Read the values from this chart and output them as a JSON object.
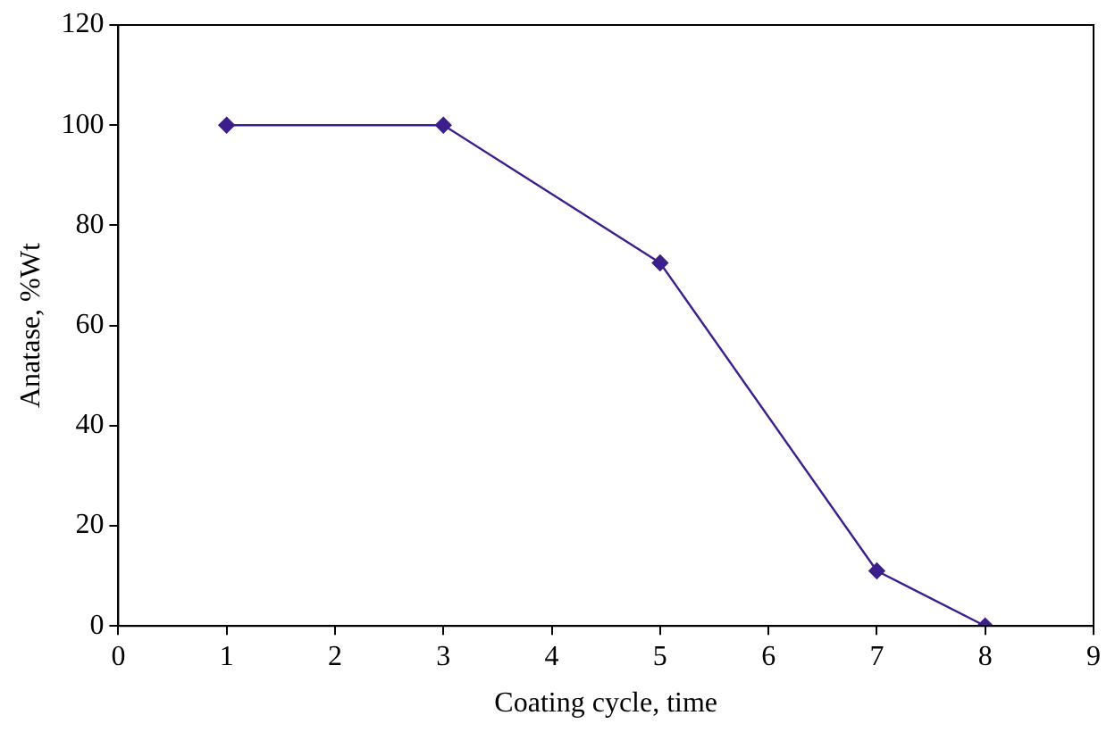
{
  "chart_data": {
    "type": "line",
    "xlabel": "Coating cycle, time",
    "ylabel": "Anatase, %Wt",
    "x": [
      1,
      3,
      5,
      7,
      8
    ],
    "series": [
      {
        "color": "#3c1f8c",
        "values": [
          100,
          100,
          72.5,
          11,
          0
        ]
      }
    ],
    "xlim": [
      0,
      9
    ],
    "xticks": [
      0,
      1,
      2,
      3,
      4,
      5,
      6,
      7,
      8,
      9
    ],
    "ylim": [
      0,
      120
    ],
    "yticks": [
      0,
      20,
      40,
      60,
      80,
      100,
      120
    ],
    "grid": false,
    "legend": false,
    "marker": "diamond",
    "line_style": "solid"
  }
}
